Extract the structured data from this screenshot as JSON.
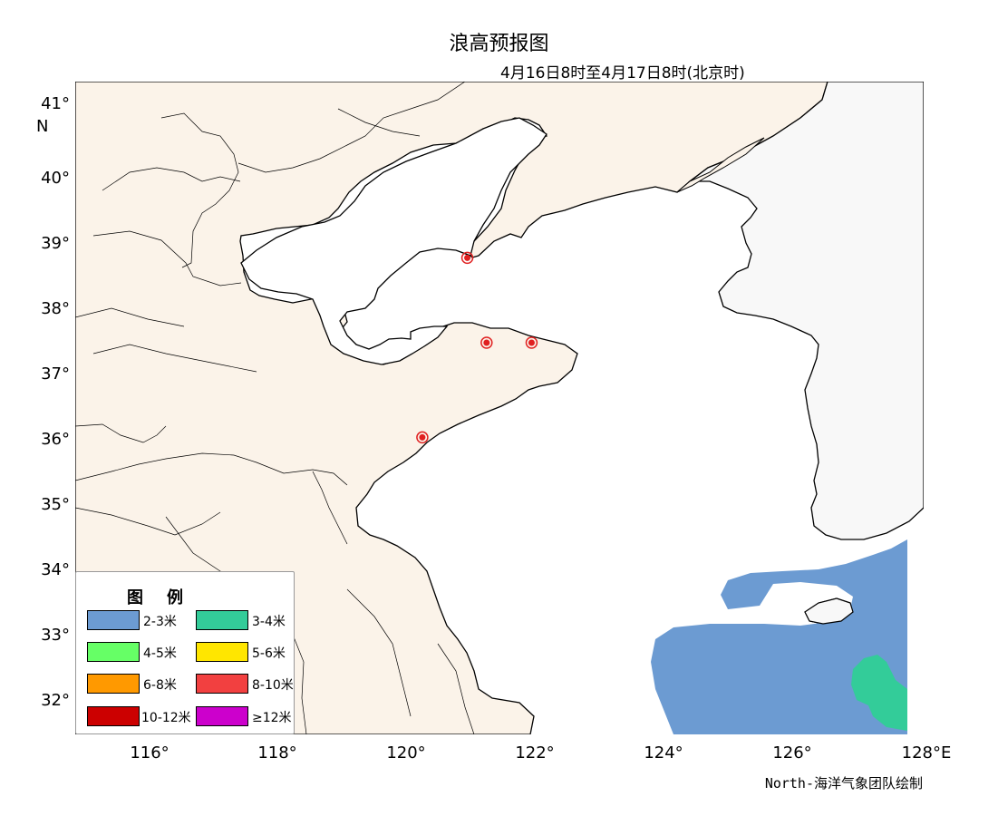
{
  "title": "浪高预报图",
  "subtitle": "4月16日8时至4月17日8时(北京时)",
  "credit": "North-海洋气象团队绘制",
  "axes": {
    "lat_labels": [
      "41°",
      "40°",
      "39°",
      "38°",
      "37°",
      "36°",
      "35°",
      "34°",
      "33°",
      "32°"
    ],
    "lat_unit": "N",
    "lon_labels": [
      "116°",
      "118°",
      "120°",
      "122°",
      "124°",
      "126°",
      "128°E"
    ]
  },
  "map": {
    "lon_range": [
      115,
      128.2
    ],
    "lat_range": [
      31.5,
      41.5
    ],
    "land_color": "#fbf3e9",
    "foreign_land_color": "#f8f8f8",
    "sea_color": "#ffffff",
    "stations": [
      {
        "lon": 121.1,
        "lat": 38.8
      },
      {
        "lon": 121.4,
        "lat": 37.5
      },
      {
        "lon": 122.1,
        "lat": 37.5
      },
      {
        "lon": 120.4,
        "lat": 36.05
      }
    ],
    "wave_zones": [
      {
        "class": "2-3米",
        "color": "#6c9bd2"
      },
      {
        "class": "3-4米",
        "color": "#33cc99"
      }
    ]
  },
  "legend": {
    "title": "图例",
    "items": [
      {
        "label": "2-3米",
        "color": "#6c9bd2"
      },
      {
        "label": "3-4米",
        "color": "#33cc99"
      },
      {
        "label": "4-5米",
        "color": "#66ff66"
      },
      {
        "label": "5-6米",
        "color": "#ffe600"
      },
      {
        "label": "6-8米",
        "color": "#ff9900"
      },
      {
        "label": "8-10米",
        "color": "#f24040"
      },
      {
        "label": "10-12米",
        "color": "#cc0000"
      },
      {
        "label": "≥12米",
        "color": "#cc00cc"
      }
    ]
  }
}
